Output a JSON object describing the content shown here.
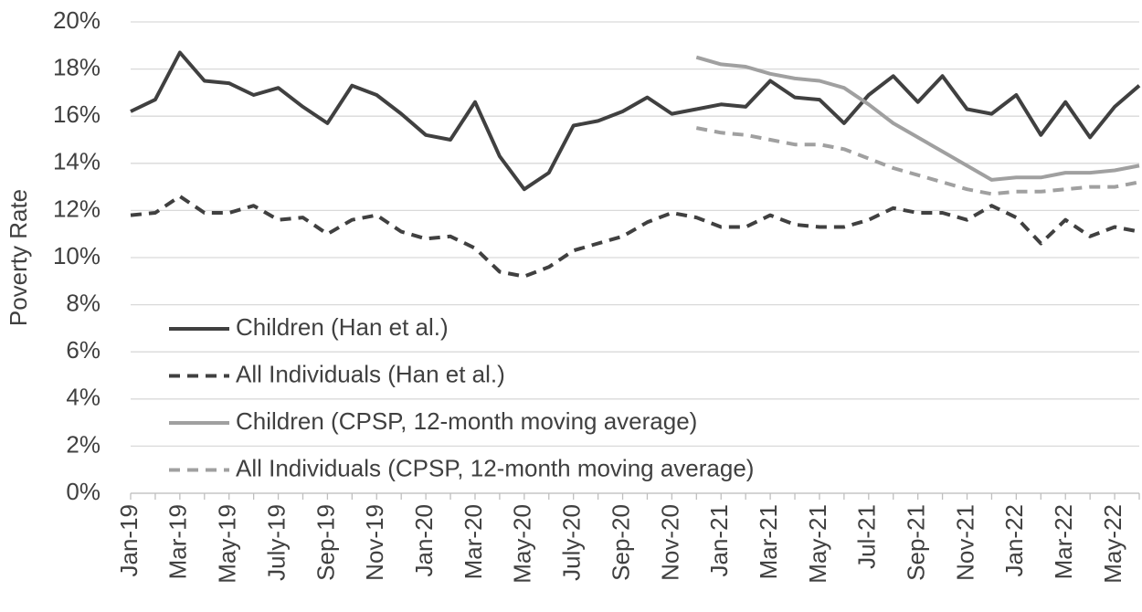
{
  "chart_data": {
    "type": "line",
    "y_label": "Poverty Rate",
    "categories": [
      "Jan-19",
      null,
      "Mar-19",
      null,
      "May-19",
      null,
      "July-19",
      null,
      "Sep-19",
      null,
      "Nov-19",
      null,
      "Jan-20",
      null,
      "Mar-20",
      null,
      "May-20",
      null,
      "July-20",
      null,
      "Sep-20",
      null,
      "Nov-20",
      null,
      "Jan-21",
      null,
      "Mar-21",
      null,
      "May-21",
      null,
      "Jul-21",
      null,
      "Sep-21",
      null,
      "Nov-21",
      null,
      "Jan-22",
      null,
      "Mar-22",
      null,
      "May-22",
      null
    ],
    "series": [
      {
        "name": "Children (Han et al.)",
        "color": "#404040",
        "dashed": false,
        "values": [
          16.2,
          16.7,
          18.7,
          17.5,
          17.4,
          16.9,
          17.2,
          16.4,
          15.7,
          17.3,
          16.9,
          16.1,
          15.2,
          15.0,
          16.6,
          14.3,
          12.9,
          13.6,
          15.6,
          15.8,
          16.2,
          16.8,
          16.1,
          16.3,
          16.5,
          16.4,
          17.5,
          16.8,
          16.7,
          15.7,
          16.9,
          17.7,
          16.6,
          17.7,
          16.3,
          16.1,
          16.9,
          15.2,
          16.6,
          15.1,
          16.4,
          17.3
        ]
      },
      {
        "name": "All Individuals (Han et al.)",
        "color": "#404040",
        "dashed": true,
        "values": [
          11.8,
          11.9,
          12.6,
          11.9,
          11.9,
          12.2,
          11.6,
          11.7,
          11.0,
          11.6,
          11.8,
          11.1,
          10.8,
          10.9,
          10.4,
          9.4,
          9.2,
          9.6,
          10.3,
          10.6,
          10.9,
          11.5,
          11.9,
          11.7,
          11.3,
          11.3,
          11.8,
          11.4,
          11.3,
          11.3,
          11.6,
          12.1,
          11.9,
          11.9,
          11.6,
          12.2,
          11.7,
          10.6,
          11.6,
          10.9,
          11.3,
          11.1
        ]
      },
      {
        "name": "Children (CPSP, 12-month moving average)",
        "color": "#a0a0a0",
        "dashed": false,
        "values": [
          null,
          null,
          null,
          null,
          null,
          null,
          null,
          null,
          null,
          null,
          null,
          null,
          null,
          null,
          null,
          null,
          null,
          null,
          null,
          null,
          null,
          null,
          null,
          18.5,
          18.2,
          18.1,
          17.8,
          17.6,
          17.5,
          17.2,
          16.5,
          15.7,
          15.1,
          14.5,
          13.9,
          13.3,
          13.4,
          13.4,
          13.6,
          13.6,
          13.7,
          13.9
        ]
      },
      {
        "name": "All Individuals (CPSP, 12-month moving average)",
        "color": "#a0a0a0",
        "dashed": true,
        "values": [
          null,
          null,
          null,
          null,
          null,
          null,
          null,
          null,
          null,
          null,
          null,
          null,
          null,
          null,
          null,
          null,
          null,
          null,
          null,
          null,
          null,
          null,
          null,
          15.5,
          15.3,
          15.2,
          15.0,
          14.8,
          14.8,
          14.6,
          14.2,
          13.8,
          13.5,
          13.2,
          12.9,
          12.7,
          12.8,
          12.8,
          12.9,
          13.0,
          13.0,
          13.2
        ]
      }
    ],
    "ylim": [
      0,
      20
    ],
    "yticks": [
      {
        "value": 0,
        "label": "0%"
      },
      {
        "value": 2,
        "label": "2%"
      },
      {
        "value": 4,
        "label": "4%"
      },
      {
        "value": 6,
        "label": "6%"
      },
      {
        "value": 8,
        "label": "8%"
      },
      {
        "value": 10,
        "label": "10%"
      },
      {
        "value": 12,
        "label": "12%"
      },
      {
        "value": 14,
        "label": "14%"
      },
      {
        "value": 16,
        "label": "16%"
      },
      {
        "value": 18,
        "label": "18%"
      },
      {
        "value": 20,
        "label": "20%"
      }
    ],
    "grid": true,
    "legend_position": "lower left"
  }
}
